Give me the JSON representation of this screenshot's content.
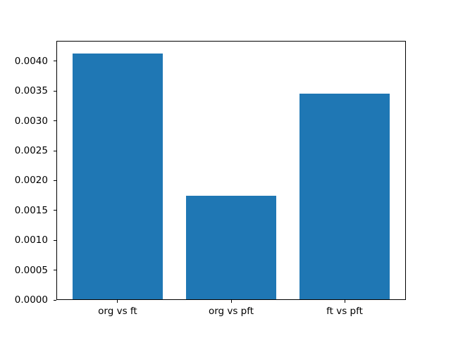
{
  "chart_data": {
    "type": "bar",
    "title": "",
    "xlabel": "",
    "ylabel": "",
    "categories": [
      "org vs ft",
      "org vs pft",
      "ft vs pft"
    ],
    "values": [
      0.00413,
      0.00175,
      0.00345
    ],
    "bar_color": "#1f77b4",
    "background_color": "#ffffff",
    "spine_color": "#000000",
    "text_color": "#000000",
    "ylim": [
      0,
      0.00434
    ],
    "ytick_values": [
      0.0,
      0.0005,
      0.001,
      0.0015,
      0.002,
      0.0025,
      0.003,
      0.0035,
      0.004
    ],
    "ytick_labels": [
      "0.0000",
      "0.0005",
      "0.0010",
      "0.0015",
      "0.0020",
      "0.0025",
      "0.0030",
      "0.0035",
      "0.0040"
    ],
    "bar_width_fraction": 0.8,
    "x_margin_fraction": 0.05,
    "grid": false,
    "legend": "none"
  }
}
